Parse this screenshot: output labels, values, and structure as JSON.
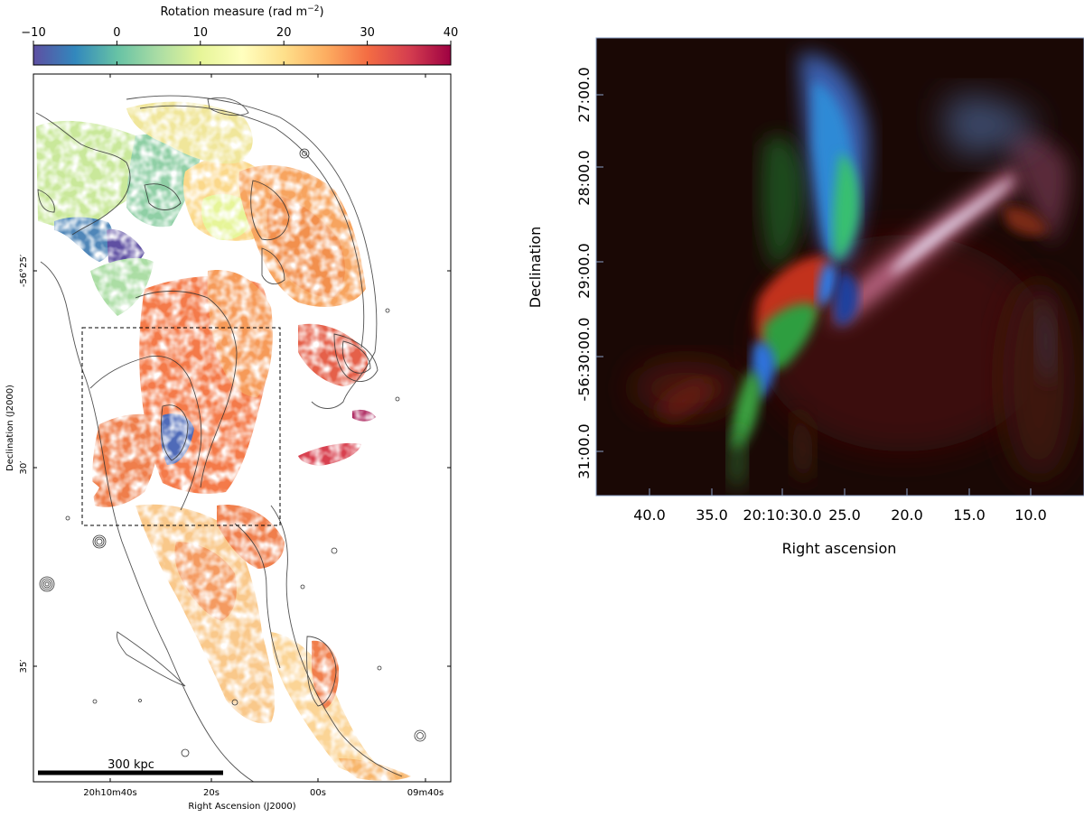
{
  "left_panel": {
    "colorbar": {
      "label_main": "Rotation measure (rad m",
      "label_exp": "−2",
      "label_close": ")",
      "ticks": [
        {
          "value": -10,
          "label": "−10"
        },
        {
          "value": 0,
          "label": "0"
        },
        {
          "value": 10,
          "label": "10"
        },
        {
          "value": 20,
          "label": "20"
        },
        {
          "value": 30,
          "label": "30"
        },
        {
          "value": 40,
          "label": "40"
        }
      ],
      "range": [
        -10,
        40
      ],
      "stops": [
        {
          "value": -10,
          "color": "#5e4fa2"
        },
        {
          "value": -5,
          "color": "#3288bd"
        },
        {
          "value": 0,
          "color": "#66c2a5"
        },
        {
          "value": 5,
          "color": "#abdda4"
        },
        {
          "value": 10,
          "color": "#e6f598"
        },
        {
          "value": 15,
          "color": "#ffffbf"
        },
        {
          "value": 20,
          "color": "#fee08b"
        },
        {
          "value": 25,
          "color": "#fdae61"
        },
        {
          "value": 30,
          "color": "#f46d43"
        },
        {
          "value": 35,
          "color": "#d53e4f"
        },
        {
          "value": 40,
          "color": "#9e0142"
        }
      ]
    },
    "ylabel": "Declination (J2000)",
    "xlabel": "Right Ascension (J2000)",
    "yticks": [
      {
        "label": "-56°25′"
      },
      {
        "label": "30′"
      },
      {
        "label": "35′"
      }
    ],
    "xticks": [
      {
        "label": "20h10m40s"
      },
      {
        "label": "20s"
      },
      {
        "label": "00s"
      },
      {
        "label": "09m40s"
      }
    ],
    "scalebar_label": "300 kpc"
  },
  "right_panel": {
    "ylabel": "Declination",
    "xlabel": "Right ascension",
    "yticks": [
      {
        "label": "27:00.0"
      },
      {
        "label": "28:00.0"
      },
      {
        "label": "29:00.0"
      },
      {
        "label": "-56:30:00.0"
      },
      {
        "label": "31:00.0"
      }
    ],
    "xticks": [
      {
        "label": "40.0"
      },
      {
        "label": "35.0"
      },
      {
        "label": "20:10:30.0"
      },
      {
        "label": "25.0"
      },
      {
        "label": "20.0"
      },
      {
        "label": "15.0"
      },
      {
        "label": "10.0"
      }
    ]
  }
}
